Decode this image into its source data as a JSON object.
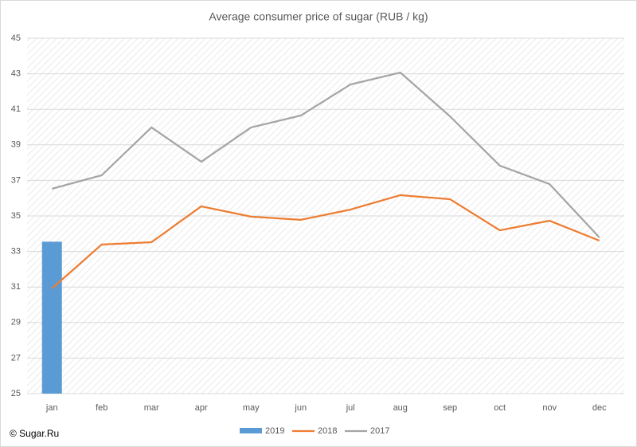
{
  "chart_data": {
    "type": "combo",
    "title": "Average consumer price of sugar (RUB / kg)",
    "categories": [
      "jan",
      "feb",
      "mar",
      "apr",
      "may",
      "jun",
      "jul",
      "aug",
      "sep",
      "oct",
      "nov",
      "dec"
    ],
    "series": [
      {
        "name": "2019",
        "type": "bar",
        "color": "#5b9bd5",
        "values": [
          33.55,
          null,
          null,
          null,
          null,
          null,
          null,
          null,
          null,
          null,
          null,
          null
        ]
      },
      {
        "name": "2018",
        "type": "line",
        "color": "#ed7d31",
        "values": [
          30.92,
          33.39,
          33.52,
          35.54,
          34.96,
          34.78,
          35.36,
          36.17,
          35.94,
          34.19,
          34.73,
          33.61
        ]
      },
      {
        "name": "2017",
        "type": "line",
        "color": "#a5a5a5",
        "values": [
          36.53,
          37.29,
          39.98,
          38.05,
          39.98,
          40.65,
          42.4,
          43.07,
          40.6,
          37.83,
          36.79,
          33.79
        ]
      }
    ],
    "ylim": [
      25,
      45
    ],
    "yticks": [
      25,
      27,
      29,
      31,
      33,
      35,
      37,
      39,
      41,
      43,
      45
    ],
    "grid": true,
    "legend": "bottom",
    "watermark": "© Sugar.Ru"
  }
}
